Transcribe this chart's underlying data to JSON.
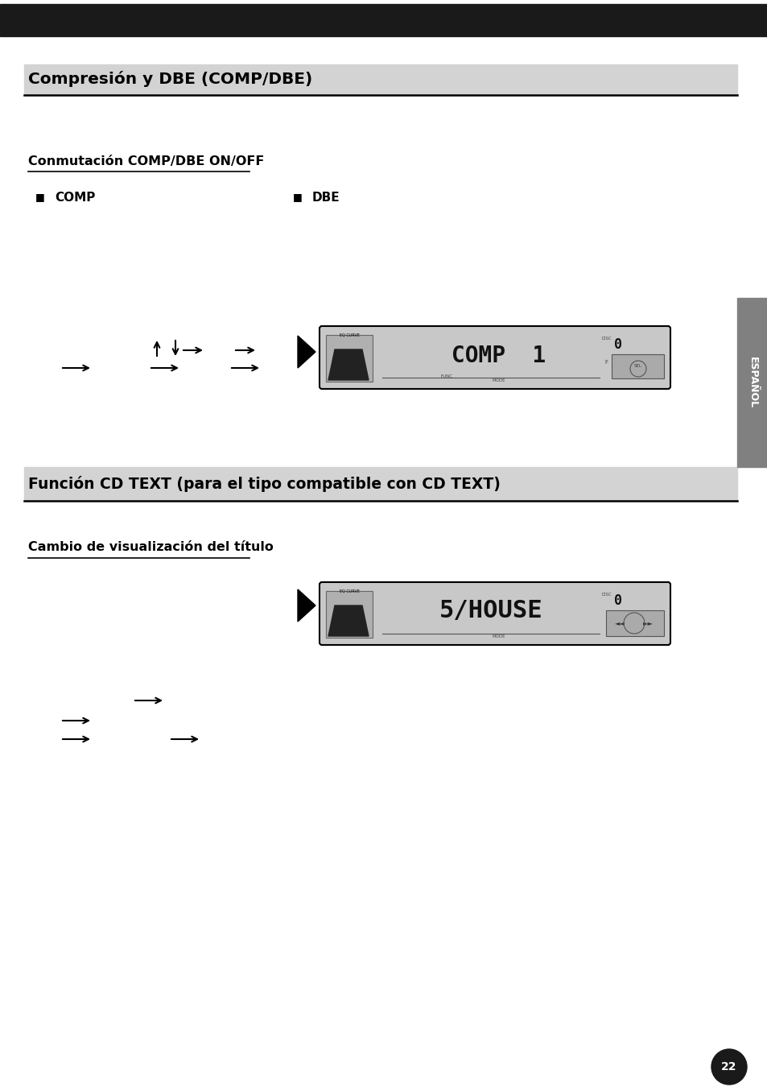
{
  "bg_color": "#ffffff",
  "top_bar_color": "#1a1a1a",
  "section1_title": "Compresión y DBE (COMP/DBE)",
  "section1_bg_color": "#d3d3d3",
  "subsection1_title": "Conmutación COMP/DBE ON/OFF",
  "bullet1_label": "COMP",
  "bullet2_label": "DBE",
  "section2_title": "Función CD TEXT (para el tipo compatible con CD TEXT)",
  "section2_bg_color": "#d3d3d3",
  "subsection2_title": "Cambio de visualización del título",
  "sidebar_text": "ESPAÑOL",
  "sidebar_bg": "#808080",
  "page_number": "22",
  "page_num_bg": "#1a1a1a",
  "display_bg": "#c8c8c8",
  "display_border": "#000000",
  "comp_display_text": "COMP  1",
  "house_display_text": "5/HOUSE",
  "black": "#000000",
  "dark_gray": "#444444",
  "mid_gray": "#888888"
}
